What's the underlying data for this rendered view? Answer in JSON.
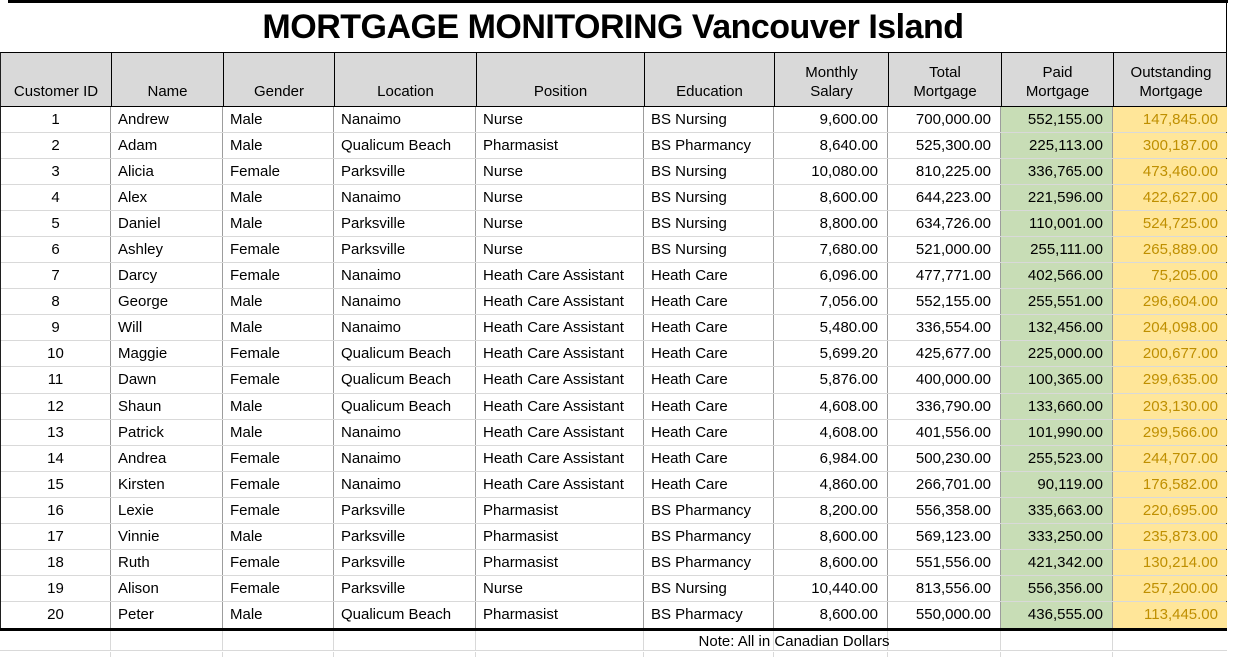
{
  "title": "MORTGAGE MONITORING Vancouver Island",
  "note": "Note: All in Canadian Dollars",
  "colors": {
    "header_bg": "#d9d9d9",
    "paid_mortgage_bg": "#c8ddb6",
    "outstanding_mortgage_bg": "#ffe699",
    "outstanding_mortgage_text": "#bf8f00"
  },
  "table": {
    "columns": [
      {
        "key": "id",
        "label": "Customer ID"
      },
      {
        "key": "name",
        "label": "Name"
      },
      {
        "key": "gender",
        "label": "Gender"
      },
      {
        "key": "location",
        "label": "Location"
      },
      {
        "key": "position",
        "label": "Position"
      },
      {
        "key": "education",
        "label": "Education"
      },
      {
        "key": "monthly_salary",
        "label": "Monthly\nSalary"
      },
      {
        "key": "total_mortgage",
        "label": "Total\nMortgage"
      },
      {
        "key": "paid_mortgage",
        "label": "Paid\nMortgage"
      },
      {
        "key": "outstanding_mortgage",
        "label": "Outstanding\nMortgage"
      }
    ],
    "rows": [
      {
        "id": "1",
        "name": "Andrew",
        "gender": "Male",
        "location": "Nanaimo",
        "position": "Nurse",
        "education": "BS Nursing",
        "monthly_salary": "9,600.00",
        "total_mortgage": "700,000.00",
        "paid_mortgage": "552,155.00",
        "outstanding_mortgage": "147,845.00"
      },
      {
        "id": "2",
        "name": "Adam",
        "gender": "Male",
        "location": "Qualicum Beach",
        "position": "Pharmasist",
        "education": "BS Pharmancy",
        "monthly_salary": "8,640.00",
        "total_mortgage": "525,300.00",
        "paid_mortgage": "225,113.00",
        "outstanding_mortgage": "300,187.00"
      },
      {
        "id": "3",
        "name": "Alicia",
        "gender": "Female",
        "location": "Parksville",
        "position": "Nurse",
        "education": "BS Nursing",
        "monthly_salary": "10,080.00",
        "total_mortgage": "810,225.00",
        "paid_mortgage": "336,765.00",
        "outstanding_mortgage": "473,460.00"
      },
      {
        "id": "4",
        "name": "Alex",
        "gender": "Male",
        "location": "Nanaimo",
        "position": "Nurse",
        "education": "BS Nursing",
        "monthly_salary": "8,600.00",
        "total_mortgage": "644,223.00",
        "paid_mortgage": "221,596.00",
        "outstanding_mortgage": "422,627.00"
      },
      {
        "id": "5",
        "name": "Daniel",
        "gender": "Male",
        "location": "Parksville",
        "position": "Nurse",
        "education": "BS Nursing",
        "monthly_salary": "8,800.00",
        "total_mortgage": "634,726.00",
        "paid_mortgage": "110,001.00",
        "outstanding_mortgage": "524,725.00"
      },
      {
        "id": "6",
        "name": "Ashley",
        "gender": "Female",
        "location": "Parksville",
        "position": "Nurse",
        "education": "BS Nursing",
        "monthly_salary": "7,680.00",
        "total_mortgage": "521,000.00",
        "paid_mortgage": "255,111.00",
        "outstanding_mortgage": "265,889.00"
      },
      {
        "id": "7",
        "name": "Darcy",
        "gender": "Female",
        "location": "Nanaimo",
        "position": "Heath Care Assistant",
        "education": "Heath Care",
        "monthly_salary": "6,096.00",
        "total_mortgage": "477,771.00",
        "paid_mortgage": "402,566.00",
        "outstanding_mortgage": "75,205.00"
      },
      {
        "id": "8",
        "name": "George",
        "gender": "Male",
        "location": "Nanaimo",
        "position": "Heath Care Assistant",
        "education": "Heath Care",
        "monthly_salary": "7,056.00",
        "total_mortgage": "552,155.00",
        "paid_mortgage": "255,551.00",
        "outstanding_mortgage": "296,604.00"
      },
      {
        "id": "9",
        "name": "Will",
        "gender": "Male",
        "location": "Nanaimo",
        "position": "Heath Care Assistant",
        "education": "Heath Care",
        "monthly_salary": "5,480.00",
        "total_mortgage": "336,554.00",
        "paid_mortgage": "132,456.00",
        "outstanding_mortgage": "204,098.00"
      },
      {
        "id": "10",
        "name": "Maggie",
        "gender": "Female",
        "location": "Qualicum Beach",
        "position": "Heath Care Assistant",
        "education": "Heath Care",
        "monthly_salary": "5,699.20",
        "total_mortgage": "425,677.00",
        "paid_mortgage": "225,000.00",
        "outstanding_mortgage": "200,677.00"
      },
      {
        "id": "11",
        "name": "Dawn",
        "gender": "Female",
        "location": "Qualicum Beach",
        "position": "Heath Care Assistant",
        "education": "Heath Care",
        "monthly_salary": "5,876.00",
        "total_mortgage": "400,000.00",
        "paid_mortgage": "100,365.00",
        "outstanding_mortgage": "299,635.00"
      },
      {
        "id": "12",
        "name": "Shaun",
        "gender": "Male",
        "location": "Qualicum Beach",
        "position": "Heath Care Assistant",
        "education": "Heath Care",
        "monthly_salary": "4,608.00",
        "total_mortgage": "336,790.00",
        "paid_mortgage": "133,660.00",
        "outstanding_mortgage": "203,130.00"
      },
      {
        "id": "13",
        "name": "Patrick",
        "gender": "Male",
        "location": "Nanaimo",
        "position": "Heath Care Assistant",
        "education": "Heath Care",
        "monthly_salary": "4,608.00",
        "total_mortgage": "401,556.00",
        "paid_mortgage": "101,990.00",
        "outstanding_mortgage": "299,566.00"
      },
      {
        "id": "14",
        "name": "Andrea",
        "gender": "Female",
        "location": "Nanaimo",
        "position": "Heath Care Assistant",
        "education": "Heath Care",
        "monthly_salary": "6,984.00",
        "total_mortgage": "500,230.00",
        "paid_mortgage": "255,523.00",
        "outstanding_mortgage": "244,707.00"
      },
      {
        "id": "15",
        "name": "Kirsten",
        "gender": "Female",
        "location": "Nanaimo",
        "position": "Heath Care Assistant",
        "education": "Heath Care",
        "monthly_salary": "4,860.00",
        "total_mortgage": "266,701.00",
        "paid_mortgage": "90,119.00",
        "outstanding_mortgage": "176,582.00"
      },
      {
        "id": "16",
        "name": "Lexie",
        "gender": "Female",
        "location": "Parksville",
        "position": "Pharmasist",
        "education": "BS Pharmancy",
        "monthly_salary": "8,200.00",
        "total_mortgage": "556,358.00",
        "paid_mortgage": "335,663.00",
        "outstanding_mortgage": "220,695.00"
      },
      {
        "id": "17",
        "name": "Vinnie",
        "gender": "Male",
        "location": "Parksville",
        "position": "Pharmasist",
        "education": "BS Pharmancy",
        "monthly_salary": "8,600.00",
        "total_mortgage": "569,123.00",
        "paid_mortgage": "333,250.00",
        "outstanding_mortgage": "235,873.00"
      },
      {
        "id": "18",
        "name": "Ruth",
        "gender": "Female",
        "location": "Parksville",
        "position": "Pharmasist",
        "education": "BS Pharmancy",
        "monthly_salary": "8,600.00",
        "total_mortgage": "551,556.00",
        "paid_mortgage": "421,342.00",
        "outstanding_mortgage": "130,214.00"
      },
      {
        "id": "19",
        "name": "Alison",
        "gender": "Female",
        "location": "Parksville",
        "position": "Nurse",
        "education": "BS Nursing",
        "monthly_salary": "10,440.00",
        "total_mortgage": "813,556.00",
        "paid_mortgage": "556,356.00",
        "outstanding_mortgage": "257,200.00"
      },
      {
        "id": "20",
        "name": "Peter",
        "gender": "Male",
        "location": "Qualicum Beach",
        "position": "Pharmasist",
        "education": "BS Pharmacy",
        "monthly_salary": "8,600.00",
        "total_mortgage": "550,000.00",
        "paid_mortgage": "436,555.00",
        "outstanding_mortgage": "113,445.00"
      }
    ]
  }
}
